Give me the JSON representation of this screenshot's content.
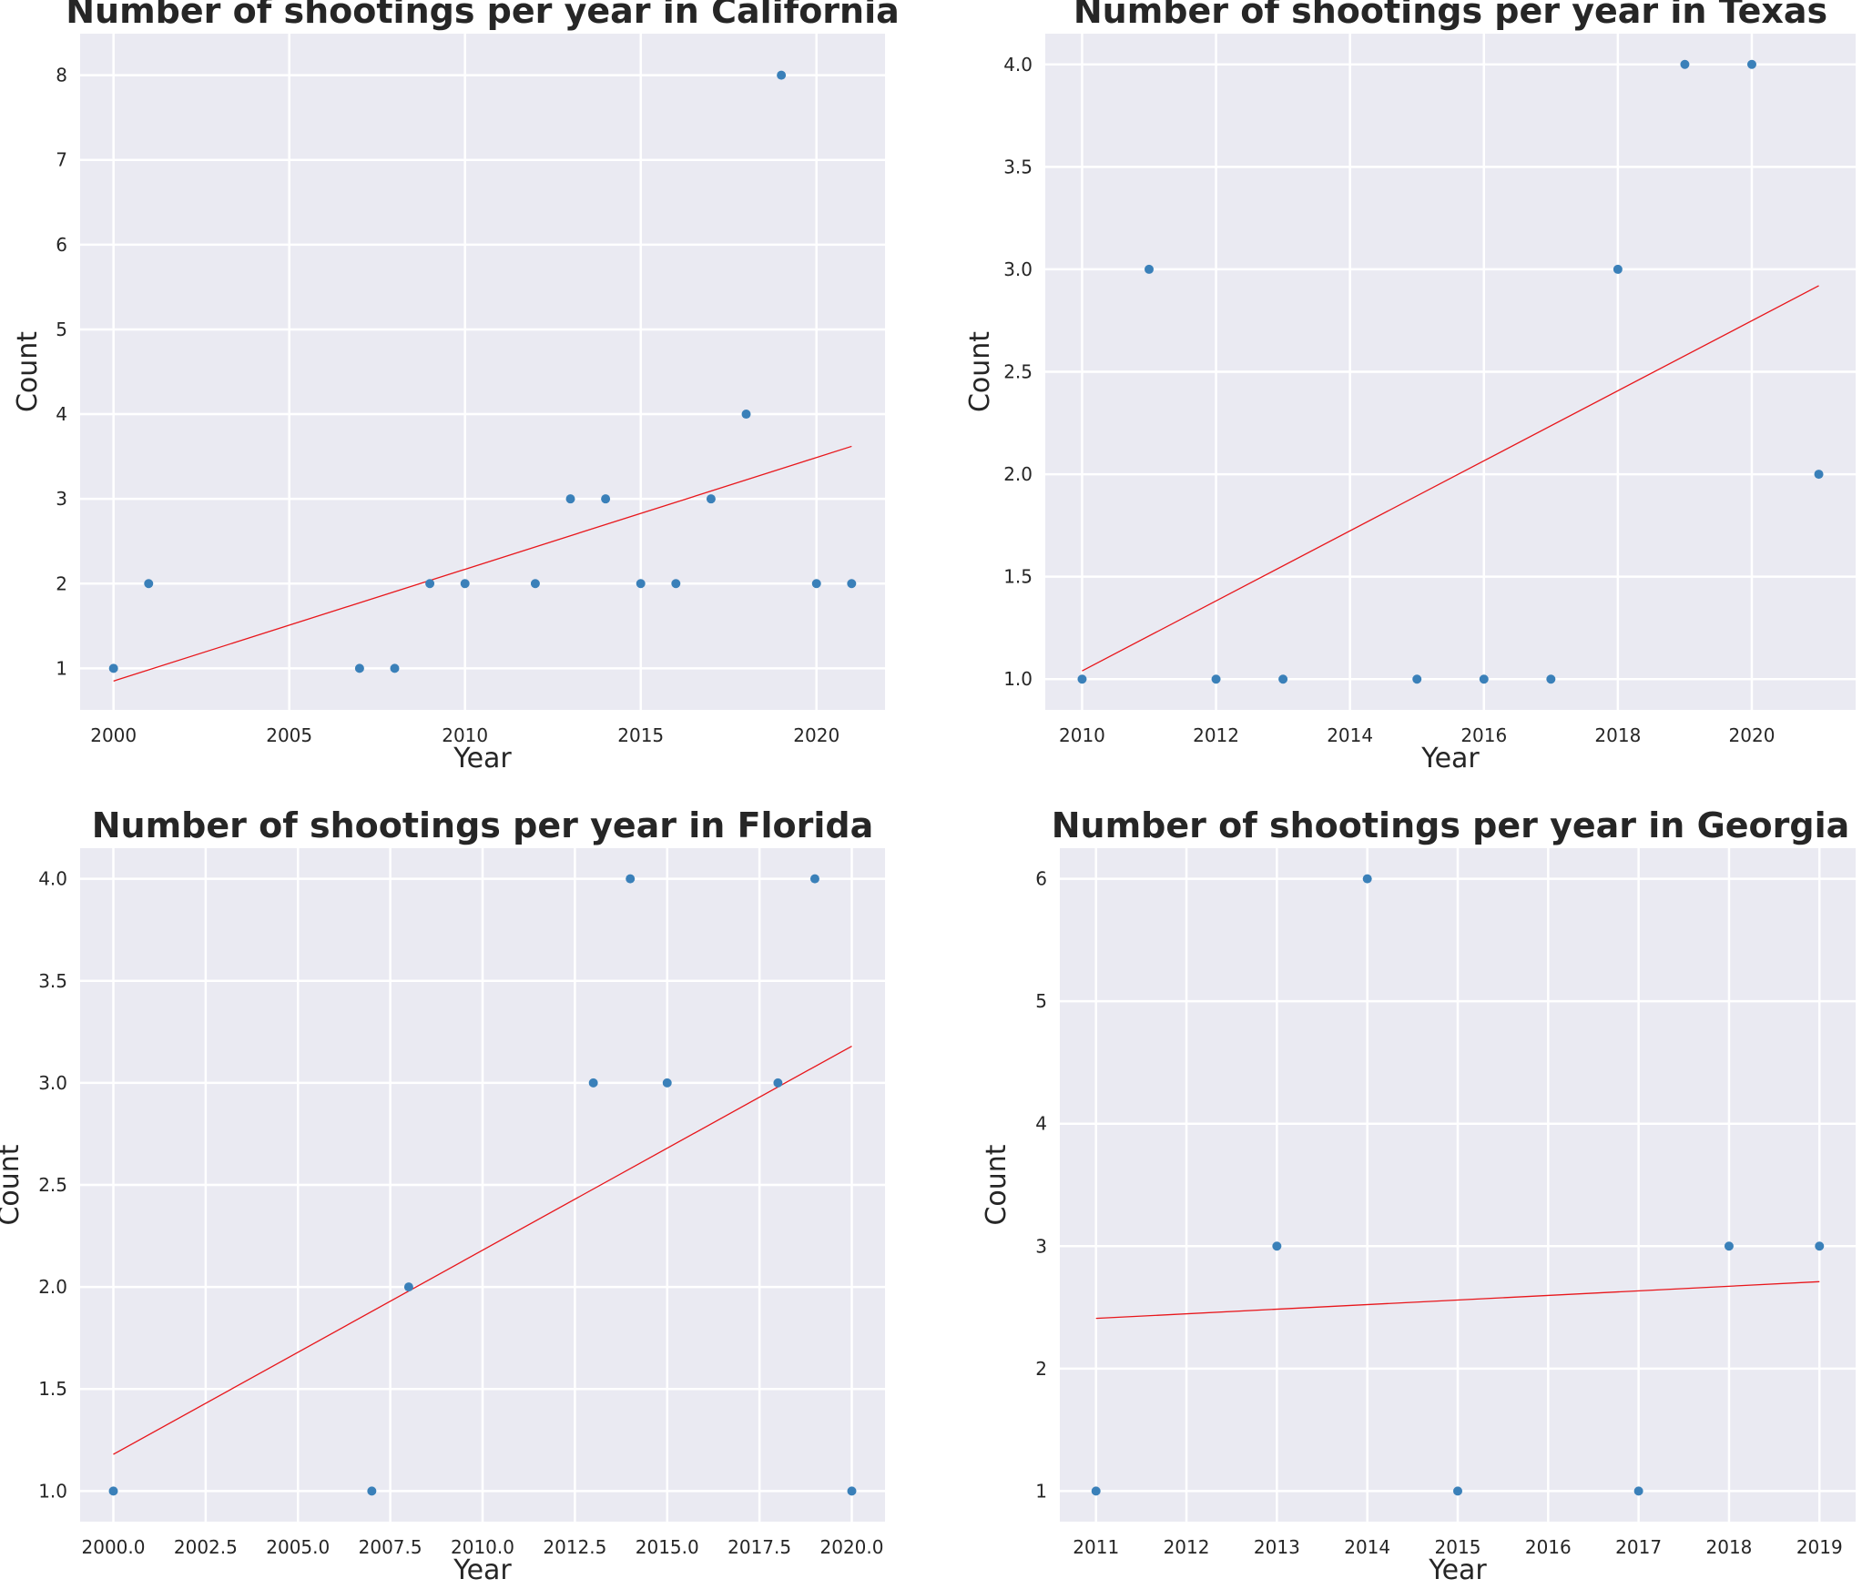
{
  "figure": {
    "background": "#ffffff",
    "plot_background": "#eaeaf2",
    "grid_color": "#ffffff",
    "point_color": "#3a80b9",
    "line_color": "#e8161b"
  },
  "chart_data": [
    {
      "type": "scatter",
      "title": "Number of shootings per year in California",
      "xlabel": "Year",
      "ylabel": "Count",
      "xlim": [
        1999.05,
        2021.95
      ],
      "ylim": [
        0.51,
        8.49
      ],
      "xticks": [
        2000,
        2005,
        2010,
        2015,
        2020
      ],
      "xtick_labels": [
        "2000",
        "2005",
        "2010",
        "2015",
        "2020"
      ],
      "yticks": [
        1,
        2,
        3,
        4,
        5,
        6,
        7,
        8
      ],
      "ytick_labels": [
        "1",
        "2",
        "3",
        "4",
        "5",
        "6",
        "7",
        "8"
      ],
      "grid": true,
      "points": {
        "x": [
          2000,
          2001,
          2007,
          2008,
          2009,
          2010,
          2012,
          2013,
          2014,
          2015,
          2016,
          2017,
          2018,
          2019,
          2020,
          2021
        ],
        "y": [
          1,
          2,
          1,
          1,
          2,
          2,
          2,
          3,
          3,
          2,
          2,
          3,
          4,
          8,
          2,
          2
        ]
      },
      "trend_line": {
        "x": [
          2000,
          2021
        ],
        "y": [
          0.85,
          3.62
        ]
      }
    },
    {
      "type": "scatter",
      "title": "Number of shootings per year in Texas",
      "xlabel": "Year",
      "ylabel": "Count",
      "xlim": [
        2009.45,
        2021.55
      ],
      "ylim": [
        0.85,
        4.15
      ],
      "xticks": [
        2010,
        2012,
        2014,
        2016,
        2018,
        2020
      ],
      "xtick_labels": [
        "2010",
        "2012",
        "2014",
        "2016",
        "2018",
        "2020"
      ],
      "yticks": [
        1.0,
        1.5,
        2.0,
        2.5,
        3.0,
        3.5,
        4.0
      ],
      "ytick_labels": [
        "1.0",
        "1.5",
        "2.0",
        "2.5",
        "3.0",
        "3.5",
        "4.0"
      ],
      "grid": true,
      "points": {
        "x": [
          2010,
          2011,
          2012,
          2013,
          2015,
          2016,
          2017,
          2018,
          2019,
          2020,
          2021
        ],
        "y": [
          1,
          3,
          1,
          1,
          1,
          1,
          1,
          3,
          4,
          4,
          2
        ]
      },
      "trend_line": {
        "x": [
          2010,
          2021
        ],
        "y": [
          1.04,
          2.92
        ]
      }
    },
    {
      "type": "scatter",
      "title": "Number of shootings per year in Florida",
      "xlabel": "Year",
      "ylabel": "Count",
      "xlim": [
        1999.1,
        2020.9
      ],
      "ylim": [
        0.85,
        4.15
      ],
      "xticks": [
        2000,
        2002.5,
        2005,
        2007.5,
        2010,
        2012.5,
        2015,
        2017.5,
        2020
      ],
      "xtick_labels": [
        "2000.0",
        "2002.5",
        "2005.0",
        "2007.5",
        "2010.0",
        "2012.5",
        "2015.0",
        "2017.5",
        "2020.0"
      ],
      "yticks": [
        1.0,
        1.5,
        2.0,
        2.5,
        3.0,
        3.5,
        4.0
      ],
      "ytick_labels": [
        "1.0",
        "1.5",
        "2.0",
        "2.5",
        "3.0",
        "3.5",
        "4.0"
      ],
      "grid": true,
      "points": {
        "x": [
          2000,
          2007,
          2008,
          2013,
          2014,
          2015,
          2018,
          2019,
          2020
        ],
        "y": [
          1,
          1,
          2,
          3,
          4,
          3,
          3,
          4,
          1
        ]
      },
      "trend_line": {
        "x": [
          2000,
          2020
        ],
        "y": [
          1.18,
          3.18
        ]
      }
    },
    {
      "type": "scatter",
      "title": "Number of shootings per year in Georgia",
      "xlabel": "Year",
      "ylabel": "Count",
      "xlim": [
        2010.6,
        2019.4
      ],
      "ylim": [
        0.75,
        6.25
      ],
      "xticks": [
        2011,
        2012,
        2013,
        2014,
        2015,
        2016,
        2017,
        2018,
        2019
      ],
      "xtick_labels": [
        "2011",
        "2012",
        "2013",
        "2014",
        "2015",
        "2016",
        "2017",
        "2018",
        "2019"
      ],
      "yticks": [
        1,
        2,
        3,
        4,
        5,
        6
      ],
      "ytick_labels": [
        "1",
        "2",
        "3",
        "4",
        "5",
        "6"
      ],
      "grid": true,
      "points": {
        "x": [
          2011,
          2013,
          2014,
          2015,
          2017,
          2018,
          2019
        ],
        "y": [
          1,
          3,
          6,
          1,
          1,
          3,
          3
        ]
      },
      "trend_line": {
        "x": [
          2011,
          2019
        ],
        "y": [
          2.41,
          2.71
        ]
      }
    }
  ]
}
